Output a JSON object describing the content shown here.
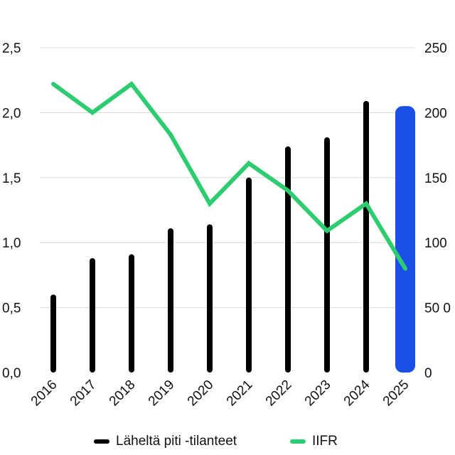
{
  "chart_data": {
    "type": "bar",
    "categories": [
      "2016",
      "2017",
      "2018",
      "2019",
      "2020",
      "2021",
      "2022",
      "2023",
      "2024",
      "2025"
    ],
    "series": [
      {
        "name": "Läheltä piti -tilanteet",
        "type": "bar",
        "axis": "left",
        "color": "#000000",
        "values": [
          0.6,
          0.88,
          0.91,
          1.11,
          1.14,
          1.5,
          1.74,
          1.81,
          2.09,
          2.05
        ]
      },
      {
        "name": "IIFR",
        "type": "line",
        "axis": "right",
        "color": "#2ecc71",
        "values": [
          222,
          200,
          222,
          183,
          130,
          161,
          140,
          109,
          130,
          80
        ]
      }
    ],
    "highlight": {
      "category": "2025",
      "color": "#1a4fe6"
    },
    "yleft": {
      "ticks": [
        "0,0",
        "0,5",
        "1,0",
        "1,5",
        "2,0",
        "2,5"
      ],
      "range": [
        0,
        2.5
      ]
    },
    "yright": {
      "ticks": [
        "0",
        "50 0",
        "100",
        "150",
        "200",
        "250"
      ],
      "range": [
        0,
        250
      ]
    },
    "grid": true,
    "legend_position": "bottom"
  }
}
